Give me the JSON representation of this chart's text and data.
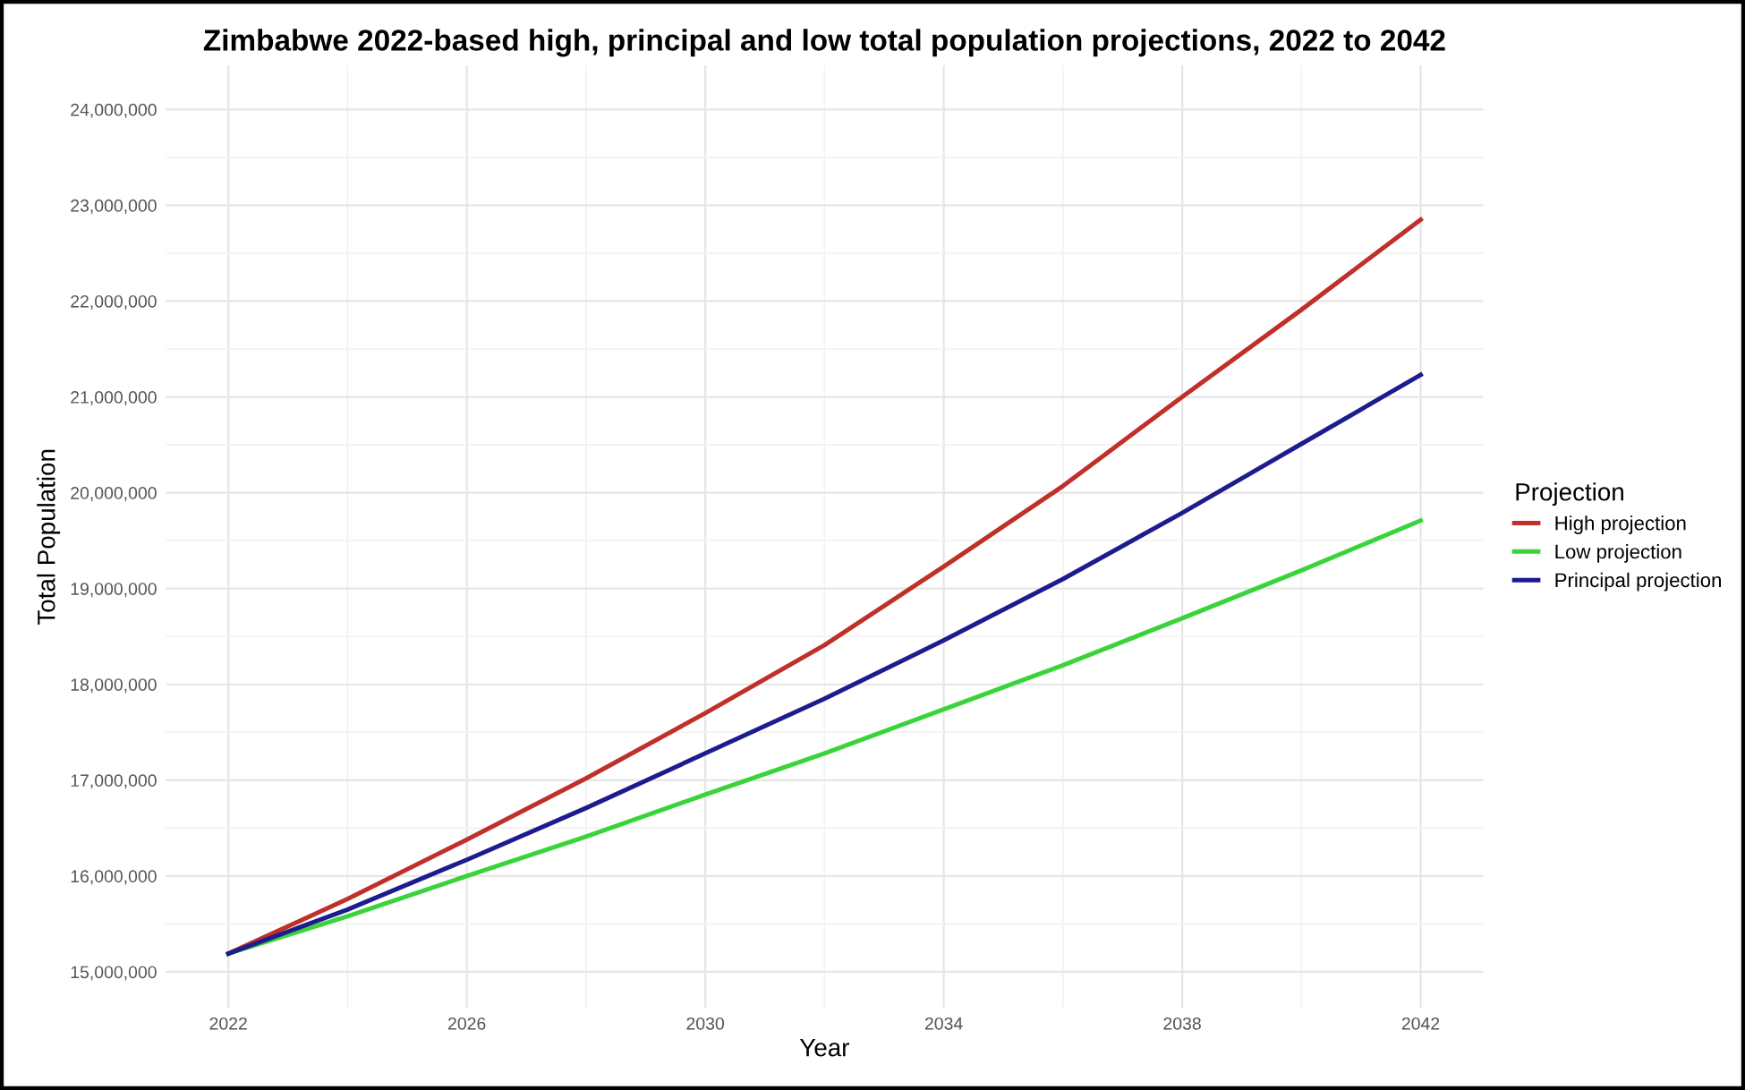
{
  "chart_data": {
    "type": "line",
    "title": "Zimbabwe 2022-based high, principal and low total population projections, 2022 to 2042",
    "xlabel": "Year",
    "ylabel": "Total Population",
    "legend_title": "Projection",
    "x": [
      2022,
      2024,
      2026,
      2028,
      2030,
      2032,
      2034,
      2036,
      2038,
      2040,
      2042
    ],
    "series": [
      {
        "name": "High projection",
        "color": "#c0302b",
        "values": [
          15190000,
          15760000,
          16380000,
          17020000,
          17700000,
          18410000,
          19230000,
          20070000,
          21000000,
          21910000,
          22850000
        ]
      },
      {
        "name": "Low projection",
        "color": "#3ad43a",
        "values": [
          15190000,
          15580000,
          16000000,
          16410000,
          16850000,
          17280000,
          17740000,
          18200000,
          18690000,
          19190000,
          19710000
        ]
      },
      {
        "name": "Principal projection",
        "color": "#1c1c8f",
        "values": [
          15190000,
          15650000,
          16170000,
          16710000,
          17280000,
          17850000,
          18460000,
          19100000,
          19790000,
          20510000,
          21230000
        ]
      }
    ],
    "xlim": [
      2020.95,
      2043.05
    ],
    "ylim": [
      14620000,
      24460000
    ],
    "xticks": [
      2022,
      2026,
      2030,
      2034,
      2038,
      2042
    ],
    "yticks": [
      {
        "value": 15000000,
        "label": "15,000,000"
      },
      {
        "value": 16000000,
        "label": "16,000,000"
      },
      {
        "value": 17000000,
        "label": "17,000,000"
      },
      {
        "value": 18000000,
        "label": "18,000,000"
      },
      {
        "value": 19000000,
        "label": "19,000,000"
      },
      {
        "value": 20000000,
        "label": "20,000,000"
      },
      {
        "value": 21000000,
        "label": "21,000,000"
      },
      {
        "value": 22000000,
        "label": "22,000,000"
      },
      {
        "value": 23000000,
        "label": "23,000,000"
      },
      {
        "value": 24000000,
        "label": "24,000,000"
      }
    ],
    "grid": true,
    "legend": "right",
    "line_style": "solid"
  }
}
